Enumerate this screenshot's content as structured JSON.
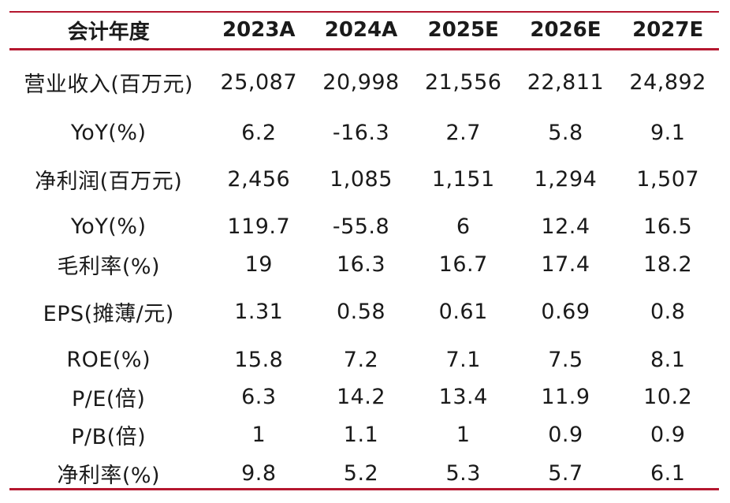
{
  "header": [
    "会计年度",
    "2023A",
    "2024A",
    "2025E",
    "2026E",
    "2027E"
  ],
  "rows": [
    [
      "营业收入(百万元)",
      "25,087",
      "20,998",
      "21,556",
      "22,811",
      "24,892"
    ],
    [
      "YoY(%)",
      "6.2",
      "-16.3",
      "2.7",
      "5.8",
      "9.1"
    ],
    [
      "净利润(百万元)",
      "2,456",
      "1,085",
      "1,151",
      "1,294",
      "1,507"
    ],
    [
      "YoY(%)",
      "119.7",
      "-55.8",
      "6",
      "12.4",
      "16.5"
    ],
    [
      "毛利率(%)",
      "19",
      "16.3",
      "16.7",
      "17.4",
      "18.2"
    ],
    [
      "EPS(摊薄/元)",
      "1.31",
      "0.58",
      "0.61",
      "0.69",
      "0.8"
    ],
    [
      "ROE(%)",
      "15.8",
      "7.2",
      "7.1",
      "7.5",
      "8.1"
    ],
    [
      "P/E(倍)",
      "6.3",
      "14.2",
      "13.4",
      "11.9",
      "10.2"
    ],
    [
      "P/B(倍)",
      "1",
      "1.1",
      "1",
      "0.9",
      "0.9"
    ],
    [
      "净利率(%)",
      "9.8",
      "5.2",
      "5.3",
      "5.7",
      "6.1"
    ]
  ],
  "colors": {
    "rule": "#b5172f",
    "text": "#1a1a1a"
  }
}
